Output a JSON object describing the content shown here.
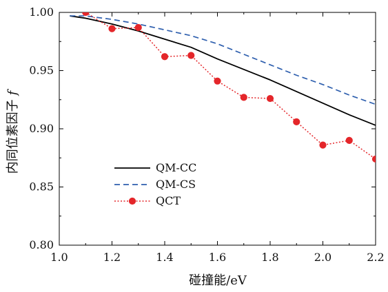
{
  "chart_data": {
    "type": "line",
    "xlabel": "碰撞能/eV",
    "ylabel": "内同位素因子",
    "ylabel_symbol": "f",
    "xlim": [
      1.0,
      2.2
    ],
    "ylim": [
      0.8,
      1.0
    ],
    "x_ticks": [
      1.0,
      1.2,
      1.4,
      1.6,
      1.8,
      2.0,
      2.2
    ],
    "x_tick_labels": [
      "1.0",
      "1.2",
      "1.4",
      "1.6",
      "1.8",
      "2.0",
      "2.2"
    ],
    "y_ticks": [
      0.8,
      0.85,
      0.9,
      0.95,
      1.0
    ],
    "y_tick_labels": [
      "0.80",
      "0.85",
      "0.90",
      "0.95",
      "1.00"
    ],
    "legend_position": "lower-left",
    "grid": false,
    "series": [
      {
        "name": "QM-CC",
        "style": "solid",
        "color": "#000000",
        "markers": false,
        "x": [
          1.04,
          1.1,
          1.2,
          1.3,
          1.4,
          1.5,
          1.6,
          1.7,
          1.8,
          1.9,
          2.0,
          2.1,
          2.2
        ],
        "y": [
          0.997,
          0.995,
          0.99,
          0.984,
          0.977,
          0.97,
          0.96,
          0.951,
          0.942,
          0.932,
          0.922,
          0.912,
          0.903
        ]
      },
      {
        "name": "QM-CS",
        "style": "dashed",
        "color": "#2e5fae",
        "markers": false,
        "x": [
          1.04,
          1.1,
          1.2,
          1.3,
          1.4,
          1.5,
          1.6,
          1.7,
          1.8,
          1.9,
          2.0,
          2.1,
          2.2
        ],
        "y": [
          0.997,
          0.997,
          0.994,
          0.99,
          0.985,
          0.98,
          0.973,
          0.964,
          0.955,
          0.946,
          0.938,
          0.929,
          0.921
        ]
      },
      {
        "name": "QCT",
        "style": "dotted",
        "color": "#e4262a",
        "markers": true,
        "x": [
          1.1,
          1.2,
          1.3,
          1.4,
          1.5,
          1.6,
          1.7,
          1.8,
          1.9,
          2.0,
          2.1,
          2.2
        ],
        "y": [
          1.0,
          0.986,
          0.987,
          0.962,
          0.963,
          0.941,
          0.927,
          0.926,
          0.906,
          0.886,
          0.89,
          0.874
        ]
      }
    ]
  }
}
